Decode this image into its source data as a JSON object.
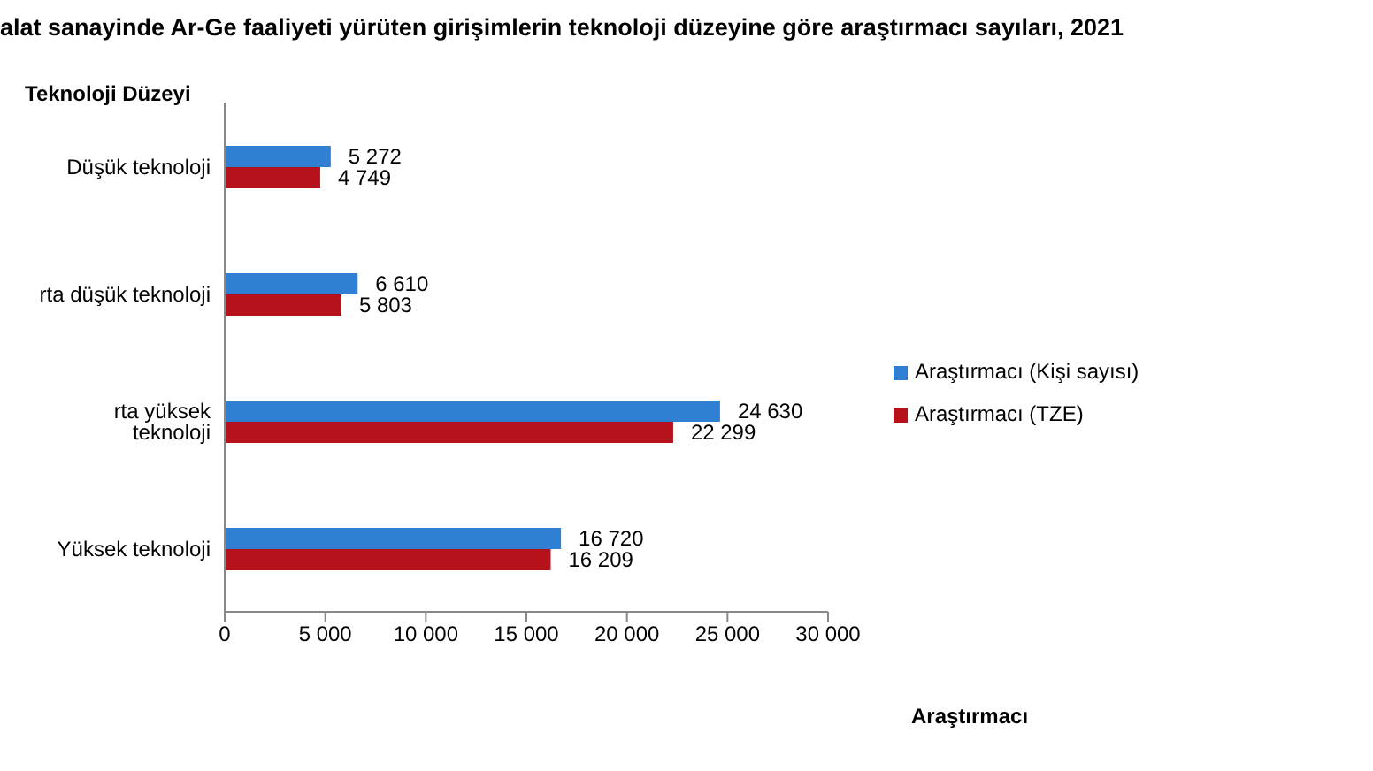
{
  "chart_data": {
    "type": "bar",
    "orientation": "horizontal",
    "title": "alat sanayinde Ar-Ge faaliyeti yürüten girişimlerin teknoloji düzeyine göre araştırmacı sayıları, 2021",
    "ylabel": "Teknoloji Düzeyi",
    "xlabel": "Araştırmacı",
    "categories": [
      "Düşük teknoloji",
      "rta düşük teknoloji",
      "rta yüksek teknoloji",
      "Yüksek teknoloji"
    ],
    "series": [
      {
        "name": "Araştırmacı (Kişi sayısı)",
        "color": "#2f7fd3",
        "values": [
          5272,
          6610,
          24630,
          16720
        ],
        "value_labels": [
          "5 272",
          "6 610",
          "24 630",
          "16 720"
        ]
      },
      {
        "name": "Araştırmacı (TZE)",
        "color": "#b5121b",
        "values": [
          4749,
          5803,
          22299,
          16209
        ],
        "value_labels": [
          "4 749",
          "5 803",
          "22 299",
          "16 209"
        ]
      }
    ],
    "xlim": [
      0,
      30000
    ],
    "xticks": [
      0,
      {
        "value": 5000,
        "label": "5 000"
      },
      {
        "value": 10000,
        "label": "10 000"
      },
      {
        "value": 15000,
        "label": "15 000"
      },
      {
        "value": 20000,
        "label": "20 000"
      },
      {
        "value": 25000,
        "label": "25 000"
      },
      {
        "value": 30000,
        "label": "30 000"
      }
    ],
    "grid": false,
    "legend": "right"
  }
}
